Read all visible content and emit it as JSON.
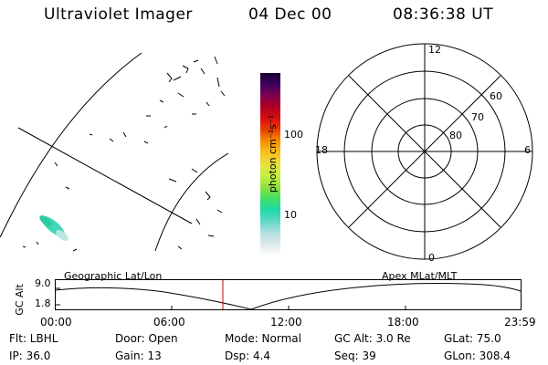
{
  "header": {
    "title": "Ultraviolet Imager",
    "date": "04 Dec 00",
    "time": "08:36:38 UT"
  },
  "colorbar": {
    "unit_label": "photon cm⁻²s⁻¹",
    "ticks": [
      "100",
      "10"
    ],
    "colors": [
      "#ffffff",
      "#dde8e8",
      "#b0e0e0",
      "#60d8c8",
      "#20d8a8",
      "#40e060",
      "#90e040",
      "#c8f040",
      "#e8e040",
      "#f8c020",
      "#f89000",
      "#e84000",
      "#d81010",
      "#b00020",
      "#800050",
      "#400060",
      "#180030"
    ]
  },
  "polar": {
    "mlt_labels": [
      "12",
      "18",
      "6",
      "0"
    ],
    "lat_labels": [
      "60",
      "70",
      "80"
    ]
  },
  "timeline": {
    "left_label": "Geographic Lat/Lon",
    "right_label": "Apex  MLat/MLT",
    "y_axis_label": "GC Alt",
    "y_ticks": [
      "9.0",
      "1.8"
    ],
    "x_ticks": [
      "00:00",
      "06:00",
      "12:00",
      "18:00",
      "23:59"
    ],
    "marker_color": "#cc0000"
  },
  "info": {
    "flt": "Flt: LBHL",
    "ip": "IP: 36.0",
    "door": "Door: Open",
    "gain": "Gain: 13",
    "mode": "Mode: Normal",
    "dsp": "Dsp:    4.4",
    "gc_alt": "GC Alt: 3.0 Re",
    "seq": "Seq: 39",
    "glat": "GLat:  75.0",
    "glon": "GLon: 308.4"
  }
}
